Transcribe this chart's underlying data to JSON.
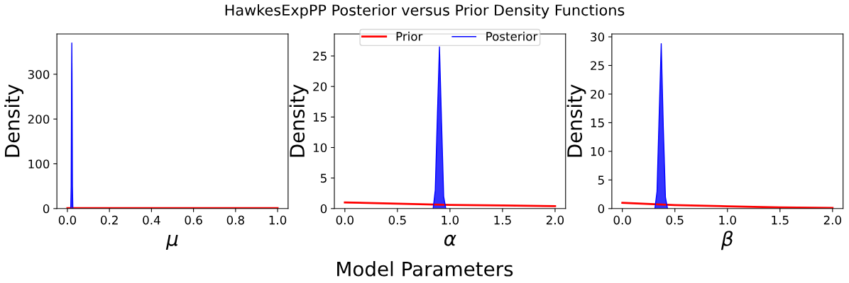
{
  "chart_data": [
    {
      "type": "line",
      "xlabel": "μ",
      "ylabel": "Density",
      "xlim": [
        -0.05,
        1.05
      ],
      "xticks": [
        {
          "value": 0,
          "label": "0.0"
        },
        {
          "value": 0.2,
          "label": "0.2"
        },
        {
          "value": 0.4,
          "label": "0.4"
        },
        {
          "value": 0.6,
          "label": "0.6"
        },
        {
          "value": 0.8,
          "label": "0.8"
        },
        {
          "value": 1,
          "label": "1.0"
        }
      ],
      "ylim": [
        0,
        390
      ],
      "yticks": [
        0,
        100,
        200,
        300
      ],
      "series": [
        {
          "color": "#ff0000",
          "x": [
            0,
            0.25,
            0.5,
            0.75,
            1
          ],
          "values": [
            1,
            1,
            1,
            1,
            1
          ]
        },
        {
          "type": "area",
          "color": "#0000ff",
          "x": [
            0.016,
            0.018,
            0.02,
            0.021,
            0.022,
            0.024,
            0.026
          ],
          "values": [
            0,
            50,
            300,
            370,
            300,
            50,
            0
          ]
        }
      ]
    },
    {
      "type": "line",
      "title": "HawkesExpPP Posterior versus Prior Density Functions",
      "xlabel": "α",
      "ylabel": "Density",
      "annotations": [
        "Model Parameters"
      ],
      "legend": "top",
      "xlim": [
        -0.1,
        2.1
      ],
      "xticks": [
        {
          "value": 0,
          "label": "0.0"
        },
        {
          "value": 0.5,
          "label": "0.5"
        },
        {
          "value": 1,
          "label": "1.0"
        },
        {
          "value": 1.5,
          "label": "1.5"
        },
        {
          "value": 2,
          "label": "2.0"
        }
      ],
      "ylim": [
        0,
        28.6
      ],
      "yticks": [
        0,
        5,
        10,
        15,
        20,
        25
      ],
      "series": [
        {
          "name": "Prior",
          "color": "#ff0000",
          "x": [
            0,
            0.5,
            1,
            1.5,
            2
          ],
          "values": [
            1,
            0.8,
            0.6,
            0.5,
            0.4
          ]
        },
        {
          "type": "area",
          "name": "Posterior",
          "color": "#0000ff",
          "x": [
            0.84,
            0.86,
            0.88,
            0.9,
            0.92,
            0.94,
            0.96
          ],
          "values": [
            0,
            3,
            15,
            26.5,
            14,
            2,
            0
          ]
        }
      ]
    },
    {
      "type": "line",
      "xlabel": "β",
      "ylabel": "Density",
      "xlim": [
        -0.1,
        2.1
      ],
      "xticks": [
        {
          "value": 0,
          "label": "0.0"
        },
        {
          "value": 0.5,
          "label": "0.5"
        },
        {
          "value": 1,
          "label": "1.0"
        },
        {
          "value": 1.5,
          "label": "1.5"
        },
        {
          "value": 2,
          "label": "2.0"
        }
      ],
      "ylim": [
        0,
        30.5
      ],
      "yticks": [
        0,
        5,
        10,
        15,
        20,
        25,
        30
      ],
      "series": [
        {
          "color": "#ff0000",
          "x": [
            0,
            0.5,
            1,
            1.5,
            2
          ],
          "values": [
            1,
            0.6,
            0.4,
            0.2,
            0.1
          ]
        },
        {
          "type": "area",
          "color": "#0000ff",
          "x": [
            0.31,
            0.33,
            0.35,
            0.37,
            0.39,
            0.41,
            0.43
          ],
          "values": [
            0,
            3,
            16,
            28.8,
            14,
            2,
            0
          ]
        }
      ]
    }
  ]
}
